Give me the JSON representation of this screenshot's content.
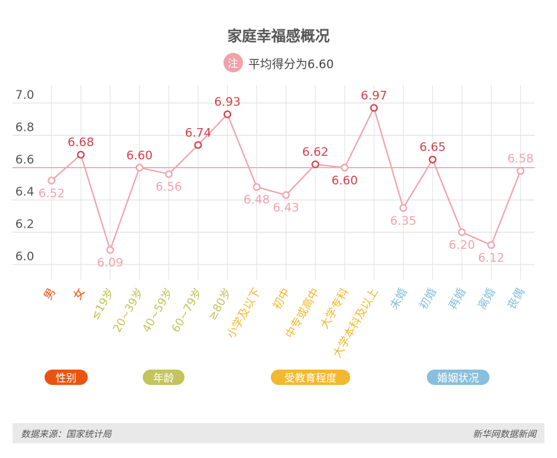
{
  "title": "家庭幸福感概况",
  "note_badge": "注",
  "subtitle": "平均得分为6.60",
  "chart_data": {
    "type": "line",
    "categories": [
      "男",
      "女",
      "≤19岁",
      "20~39岁",
      "40~59岁",
      "60~79岁",
      "≥80岁",
      "小学及以下",
      "初中",
      "中专或高中",
      "大学专科",
      "大学本科及以上",
      "未婚",
      "初婚",
      "再婚",
      "离婚",
      "丧偶"
    ],
    "values": [
      6.52,
      6.68,
      6.09,
      6.6,
      6.56,
      6.74,
      6.93,
      6.48,
      6.43,
      6.62,
      6.6,
      6.97,
      6.35,
      6.65,
      6.2,
      6.12,
      6.58
    ],
    "value_labels": [
      "6.52",
      "6.68",
      "6.09",
      "6.60",
      "6.56",
      "6.74",
      "6.93",
      "6.48",
      "6.43",
      "6.62",
      "6.60",
      "6.97",
      "6.35",
      "6.65",
      "6.20",
      "6.12",
      "6.58"
    ],
    "ylim": [
      5.9,
      7.05
    ],
    "yticks": [
      "6.0",
      "6.2",
      "6.4",
      "6.6",
      "6.8",
      "7.0"
    ],
    "reference_line": 6.6,
    "grid": true,
    "line_color": "#f0a3ad",
    "above_color": "#d2414b",
    "below_color": "#f0a3ad",
    "groups": [
      {
        "label": "性别",
        "color": "#ea5413",
        "start": 0,
        "end": 1
      },
      {
        "label": "年龄",
        "color": "#c3c45a",
        "start": 2,
        "end": 6
      },
      {
        "label": "受教育程度",
        "color": "#f3b82d",
        "start": 7,
        "end": 11
      },
      {
        "label": "婚姻状况",
        "color": "#88bfdc",
        "start": 12,
        "end": 16
      }
    ]
  },
  "footer": {
    "source": "数据来源：国家统计局",
    "brand": "新华网数据新闻"
  }
}
